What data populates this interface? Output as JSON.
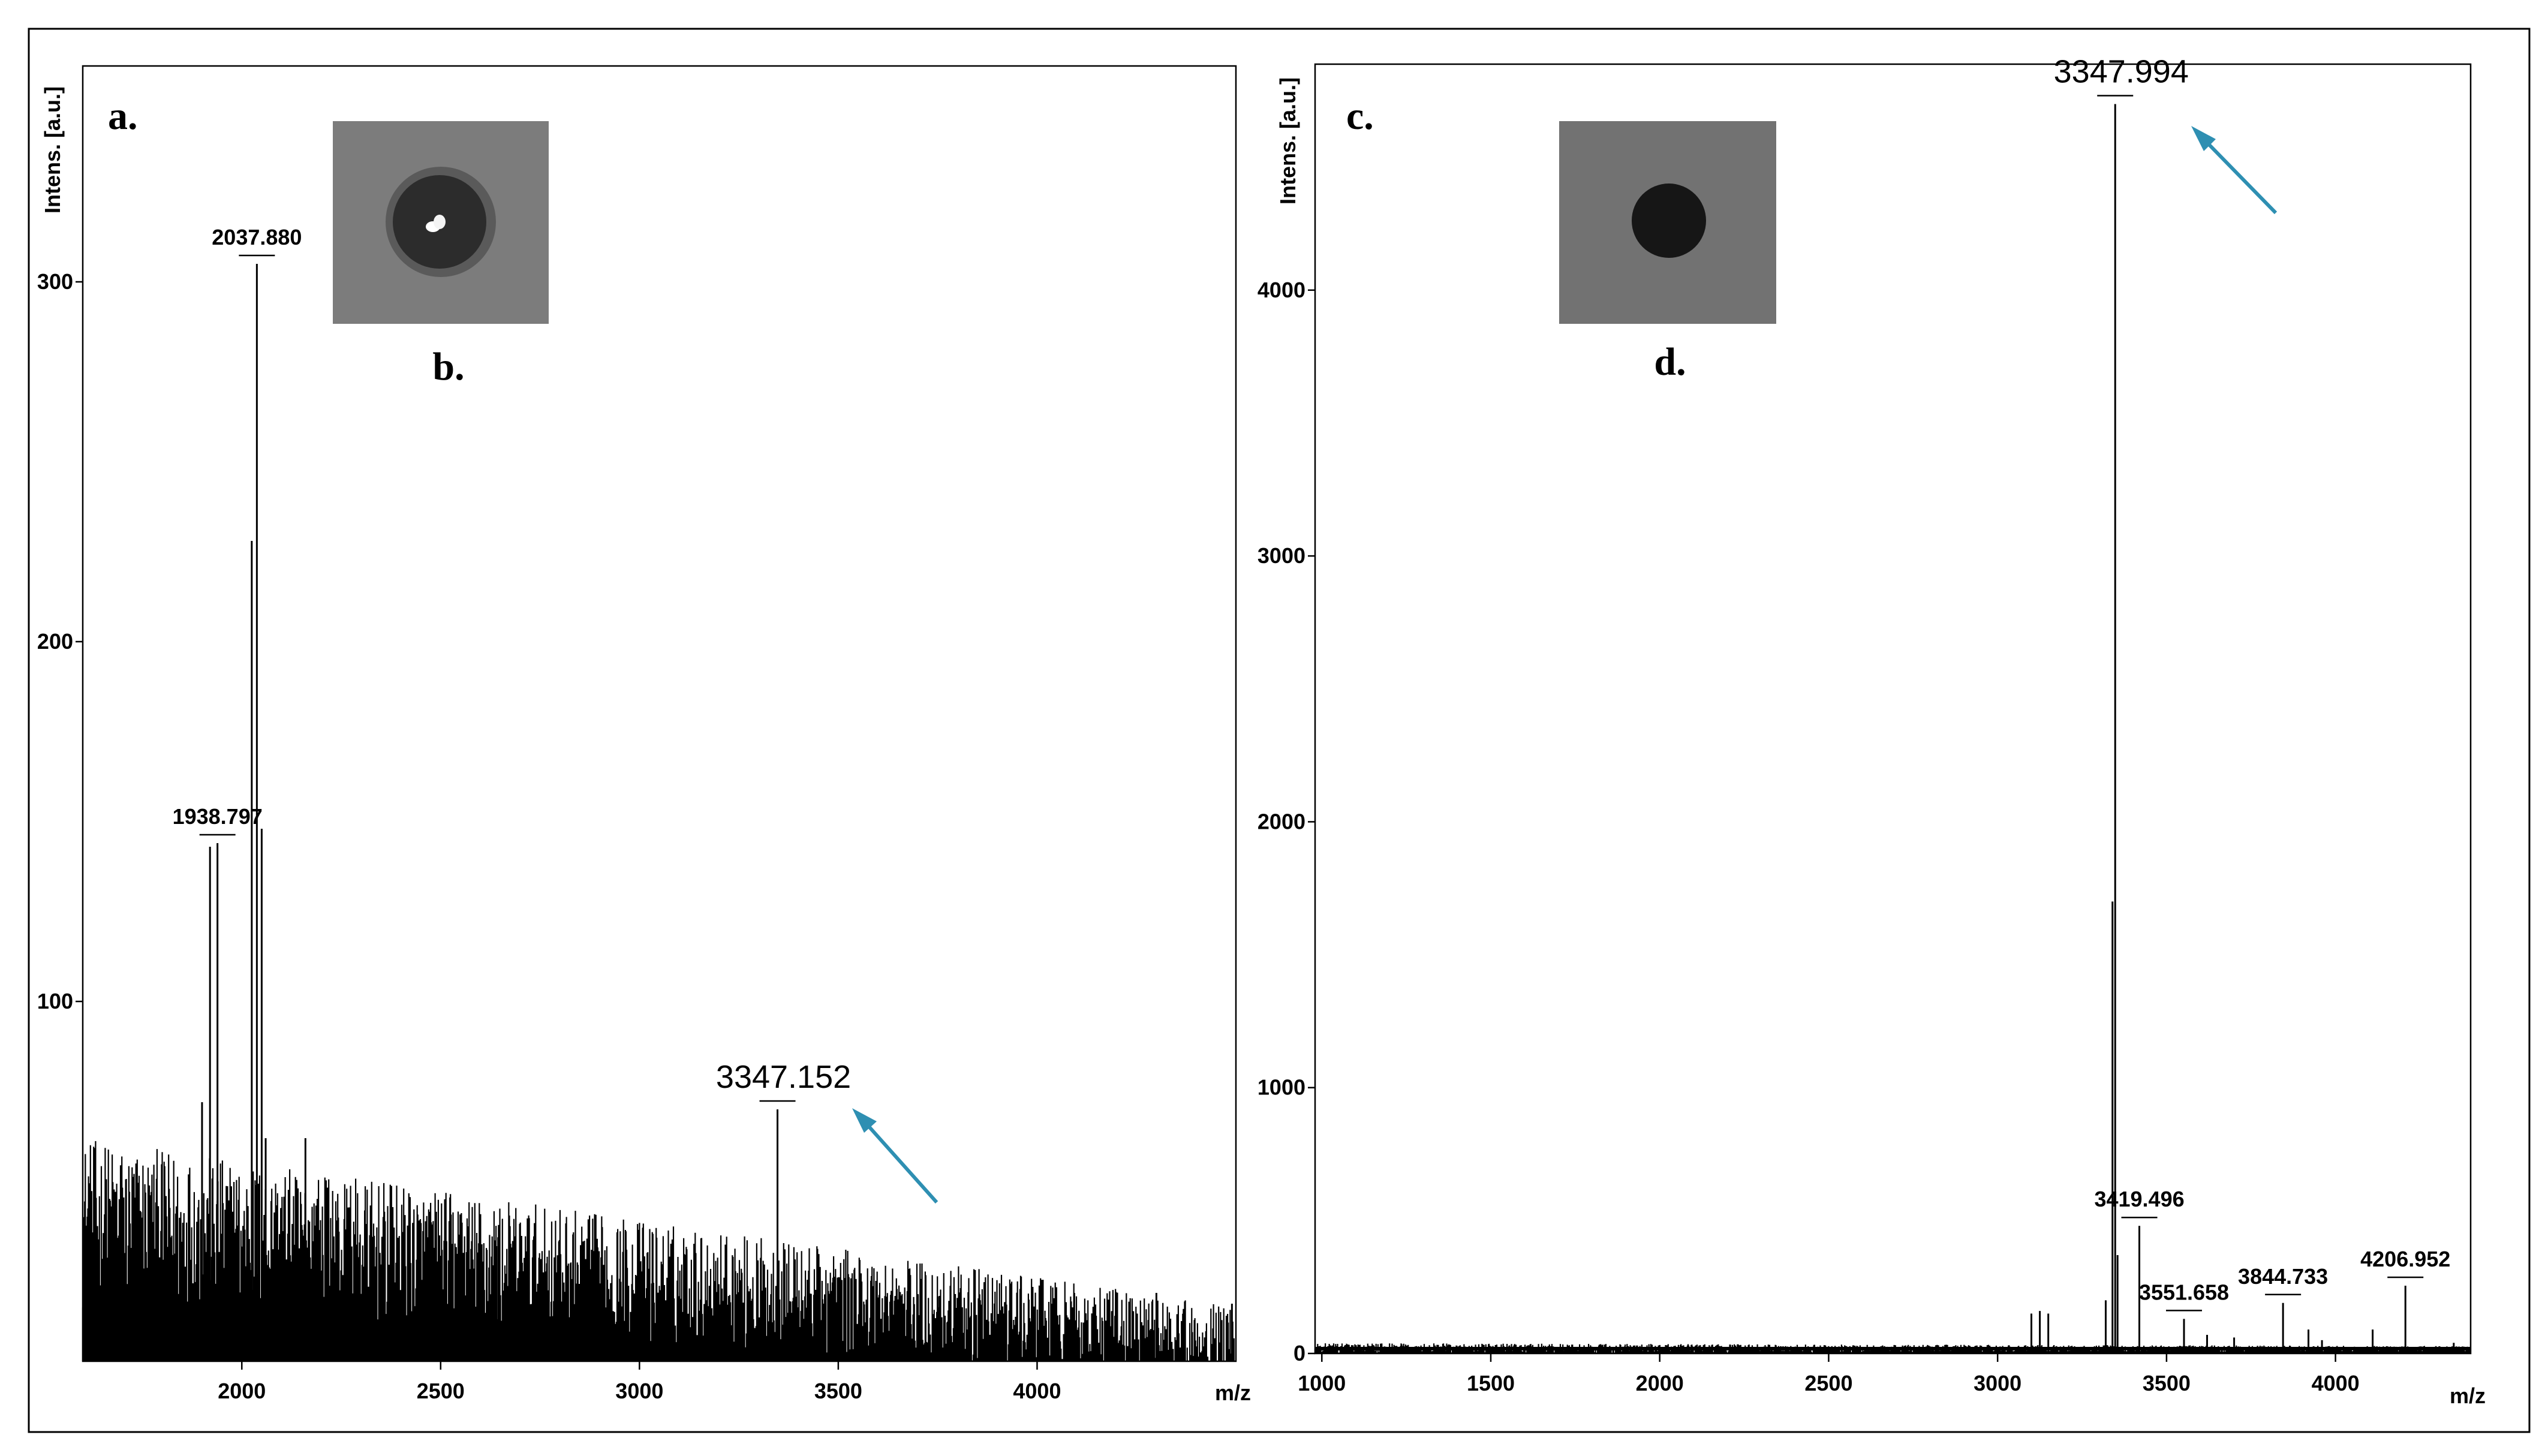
{
  "chart_data": [
    {
      "type": "line",
      "panel_label": "a.",
      "inset_label": "b.",
      "ylabel": "Intens. [a.u.]",
      "xlabel": "m/z",
      "xlim": [
        1600,
        4500
      ],
      "ylim": [
        0,
        360
      ],
      "xticks": [
        2000,
        2500,
        3000,
        3500,
        4000
      ],
      "yticks": [
        100,
        200,
        300
      ],
      "baseline_noise": {
        "start_level": 38,
        "end_level": 4,
        "amplitude": 16
      },
      "peaks": [
        {
          "mz": 1900,
          "intensity": 72
        },
        {
          "mz": 1920,
          "intensity": 143
        },
        {
          "mz": 1938.797,
          "intensity": 144,
          "label": "1938.797"
        },
        {
          "mz": 2025,
          "intensity": 228
        },
        {
          "mz": 2037.88,
          "intensity": 305,
          "label": "2037.880"
        },
        {
          "mz": 2050,
          "intensity": 148
        },
        {
          "mz": 2060,
          "intensity": 62
        },
        {
          "mz": 2160,
          "intensity": 62
        },
        {
          "mz": 2210,
          "intensity": 50
        },
        {
          "mz": 2640,
          "intensity": 32
        },
        {
          "mz": 3347.152,
          "intensity": 70,
          "label": "3347.152"
        },
        {
          "mz": 3350,
          "intensity": 28
        },
        {
          "mz": 3500,
          "intensity": 22
        },
        {
          "mz": 3750,
          "intensity": 18
        },
        {
          "mz": 4300,
          "intensity": 19
        },
        {
          "mz": 4490,
          "intensity": 16
        }
      ],
      "highlight_peak": "3347.152",
      "arrow_color": "#2e8fb2"
    },
    {
      "type": "line",
      "panel_label": "c.",
      "inset_label": "d.",
      "ylabel": "Intens. [a.u.]",
      "xlabel": "m/z",
      "xlim": [
        980,
        4400
      ],
      "ylim": [
        0,
        4850
      ],
      "xticks": [
        1000,
        1500,
        2000,
        2500,
        3000,
        3500,
        4000
      ],
      "yticks": [
        0,
        1000,
        2000,
        3000,
        4000
      ],
      "baseline_noise": {
        "start_level": 18,
        "end_level": 18,
        "amplitude": 14
      },
      "peaks": [
        {
          "mz": 3100,
          "intensity": 150
        },
        {
          "mz": 3125,
          "intensity": 160
        },
        {
          "mz": 3150,
          "intensity": 150
        },
        {
          "mz": 3320,
          "intensity": 200
        },
        {
          "mz": 3340,
          "intensity": 1700
        },
        {
          "mz": 3347.994,
          "intensity": 4700,
          "label": "3347.994"
        },
        {
          "mz": 3355,
          "intensity": 370
        },
        {
          "mz": 3419.496,
          "intensity": 480,
          "label": "3419.496"
        },
        {
          "mz": 3551.658,
          "intensity": 130,
          "label": "3551.658"
        },
        {
          "mz": 3620,
          "intensity": 70
        },
        {
          "mz": 3700,
          "intensity": 60
        },
        {
          "mz": 3844.733,
          "intensity": 190,
          "label": "3844.733"
        },
        {
          "mz": 3920,
          "intensity": 90
        },
        {
          "mz": 3960,
          "intensity": 50
        },
        {
          "mz": 4110,
          "intensity": 90
        },
        {
          "mz": 4206.952,
          "intensity": 255,
          "label": "4206.952"
        },
        {
          "mz": 4350,
          "intensity": 40
        }
      ],
      "highlight_peak": "3347.994",
      "arrow_color": "#2e8fb2"
    }
  ]
}
